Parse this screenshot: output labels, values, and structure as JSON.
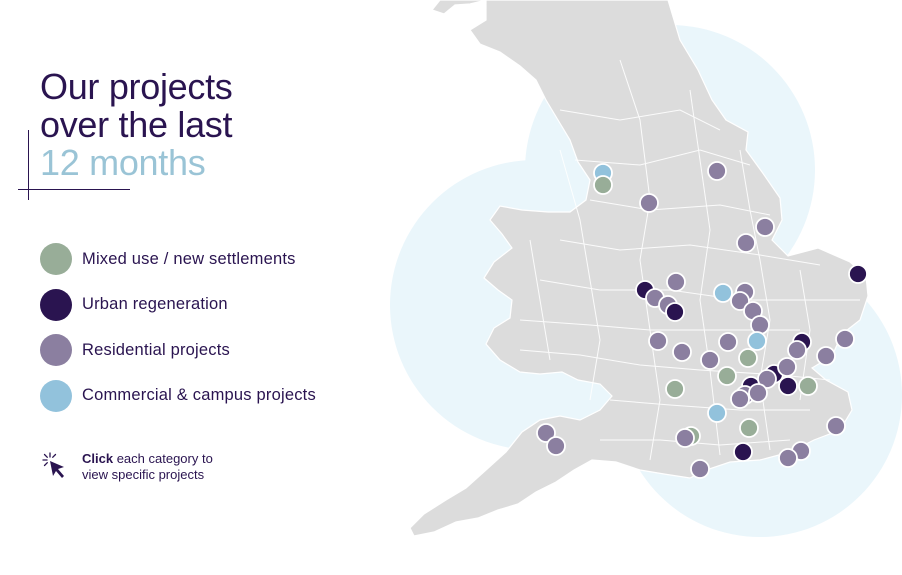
{
  "title": {
    "line1": "Our projects",
    "line2": "over the last",
    "line3": "12 months"
  },
  "legend": [
    {
      "label": "Mixed use / new settlements",
      "color": "#98ad98"
    },
    {
      "label": "Urban regeneration",
      "color": "#2a1450"
    },
    {
      "label": "Residential projects",
      "color": "#8b7fa0"
    },
    {
      "label": "Commercial & campus projects",
      "color": "#92c2dc"
    }
  ],
  "hint": {
    "bold": "Click",
    "rest": " each category to",
    "line2": "view specific projects",
    "icon": "cursor-click-icon"
  },
  "colors": {
    "brand": "#2a1450",
    "accent": "#9ac4d6",
    "land": "#dcdcdc",
    "halo": "#eaf6fb"
  },
  "markers": [
    {
      "category": "commercial"
    },
    {
      "category": "mixed"
    },
    {
      "category": "residential"
    },
    {
      "category": "residential"
    },
    {
      "category": "residential"
    },
    {
      "category": "residential"
    },
    {
      "category": "residential"
    },
    {
      "category": "regeneration"
    },
    {
      "category": "regeneration"
    },
    {
      "category": "residential"
    },
    {
      "category": "residential"
    },
    {
      "category": "regeneration"
    },
    {
      "category": "commercial"
    },
    {
      "category": "residential"
    },
    {
      "category": "residential"
    },
    {
      "category": "residential"
    },
    {
      "category": "residential"
    },
    {
      "category": "residential"
    },
    {
      "category": "residential"
    },
    {
      "category": "commercial"
    },
    {
      "category": "regeneration"
    },
    {
      "category": "residential"
    },
    {
      "category": "residential"
    },
    {
      "category": "residential"
    },
    {
      "category": "residential"
    },
    {
      "category": "residential"
    },
    {
      "category": "mixed"
    },
    {
      "category": "mixed"
    },
    {
      "category": "regeneration"
    },
    {
      "category": "regeneration"
    },
    {
      "category": "residential"
    },
    {
      "category": "residential"
    },
    {
      "category": "residential"
    },
    {
      "category": "regeneration"
    },
    {
      "category": "mixed"
    },
    {
      "category": "mixed"
    },
    {
      "category": "commercial"
    },
    {
      "category": "residential"
    },
    {
      "category": "mixed"
    },
    {
      "category": "mixed"
    },
    {
      "category": "residential"
    },
    {
      "category": "residential"
    },
    {
      "category": "residential"
    },
    {
      "category": "regeneration"
    },
    {
      "category": "residential"
    },
    {
      "category": "residential"
    },
    {
      "category": "residential"
    },
    {
      "category": "residential"
    },
    {
      "category": "residential"
    }
  ]
}
